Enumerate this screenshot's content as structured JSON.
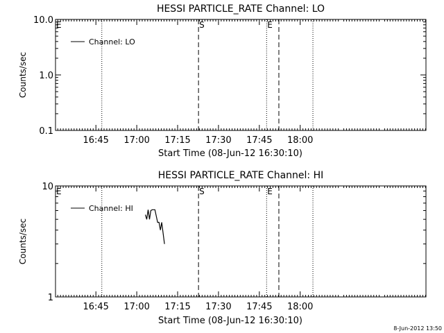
{
  "footer_date": "8-Jun-2012 13:50",
  "chart_data": [
    {
      "type": "line",
      "title": "HESSI PARTICLE_RATE Channel: LO",
      "xlabel": "Start Time (08-Jun-12 16:30:10)",
      "ylabel": "Counts/sec",
      "y_scale": "log",
      "ylim": [
        0.1,
        10.0
      ],
      "y_ticks": [
        {
          "value": 0.1,
          "label": "0.1"
        },
        {
          "value": 1.0,
          "label": "1.0"
        },
        {
          "value": 10.0,
          "label": "10.0"
        }
      ],
      "x_unit": "minutes after 16:30:10",
      "xlim": [
        0,
        136
      ],
      "x_ticks": [
        {
          "value": 14.83,
          "label": "16:45"
        },
        {
          "value": 29.83,
          "label": "17:00"
        },
        {
          "value": 44.83,
          "label": "17:15"
        },
        {
          "value": 59.83,
          "label": "17:30"
        },
        {
          "value": 74.83,
          "label": "17:45"
        },
        {
          "value": 89.83,
          "label": "18:00"
        }
      ],
      "legend": {
        "position": "top-left",
        "entries": [
          "Channel: LO"
        ]
      },
      "markers": [
        {
          "x": 0,
          "style": "none",
          "label": "E"
        },
        {
          "x": 17.0,
          "style": "dotted",
          "label": ""
        },
        {
          "x": 52.5,
          "style": "dashed",
          "label": "S"
        },
        {
          "x": 77.5,
          "style": "dotted",
          "label": "E"
        },
        {
          "x": 82.0,
          "style": "dashed",
          "label": ""
        },
        {
          "x": 94.5,
          "style": "dotted",
          "label": ""
        }
      ],
      "series": [
        {
          "values": []
        }
      ]
    },
    {
      "type": "line",
      "title": "HESSI PARTICLE_RATE Channel: HI",
      "xlabel": "Start Time (08-Jun-12 16:30:10)",
      "ylabel": "Counts/sec",
      "y_scale": "log",
      "ylim": [
        1,
        10
      ],
      "y_ticks": [
        {
          "value": 1,
          "label": "1"
        },
        {
          "value": 10,
          "label": "10"
        }
      ],
      "x_unit": "minutes after 16:30:10",
      "xlim": [
        0,
        136
      ],
      "x_ticks": [
        {
          "value": 14.83,
          "label": "16:45"
        },
        {
          "value": 29.83,
          "label": "17:00"
        },
        {
          "value": 44.83,
          "label": "17:15"
        },
        {
          "value": 59.83,
          "label": "17:30"
        },
        {
          "value": 74.83,
          "label": "17:45"
        },
        {
          "value": 89.83,
          "label": "18:00"
        }
      ],
      "legend": {
        "position": "top-left",
        "entries": [
          "Channel: HI"
        ]
      },
      "markers": [
        {
          "x": 0,
          "style": "none",
          "label": "E"
        },
        {
          "x": 17.0,
          "style": "dotted",
          "label": ""
        },
        {
          "x": 52.5,
          "style": "dashed",
          "label": "S"
        },
        {
          "x": 77.5,
          "style": "dotted",
          "label": "E"
        },
        {
          "x": 82.0,
          "style": "dashed",
          "label": ""
        },
        {
          "x": 94.5,
          "style": "dotted",
          "label": ""
        }
      ],
      "series": [
        {
          "points": [
            {
              "x": 33.0,
              "y": 5.5
            },
            {
              "x": 33.5,
              "y": 5.0
            },
            {
              "x": 34.0,
              "y": 6.1
            },
            {
              "x": 34.5,
              "y": 5.0
            },
            {
              "x": 35.0,
              "y": 6.0
            },
            {
              "x": 35.5,
              "y": 6.1
            },
            {
              "x": 36.5,
              "y": 6.1
            },
            {
              "x": 37.5,
              "y": 4.7
            },
            {
              "x": 38.0,
              "y": 4.7
            },
            {
              "x": 38.5,
              "y": 4.0
            },
            {
              "x": 39.0,
              "y": 4.7
            },
            {
              "x": 40.0,
              "y": 3.0
            }
          ]
        }
      ]
    }
  ]
}
